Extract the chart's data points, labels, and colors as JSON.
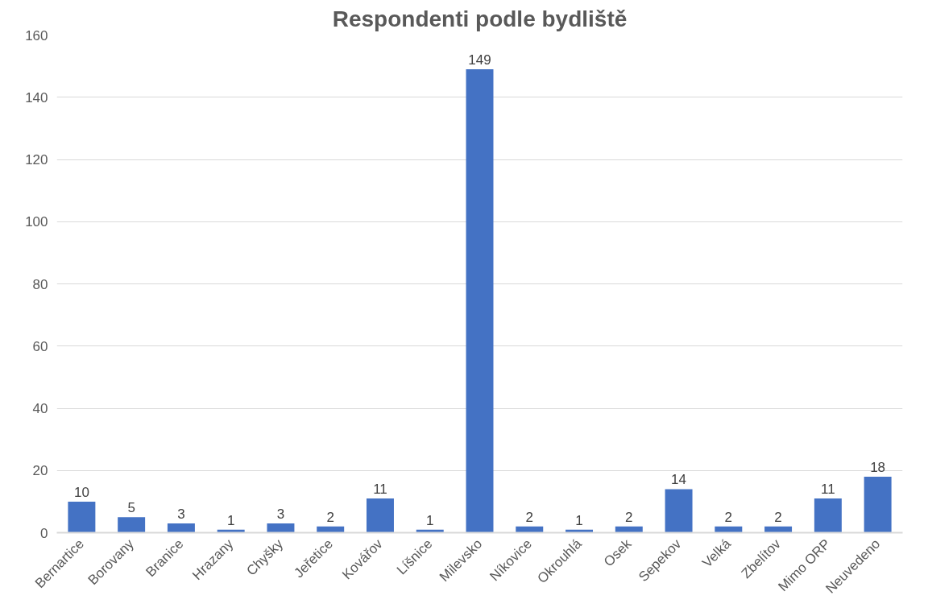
{
  "chart_data": {
    "type": "bar",
    "title": "Respondenti podle bydliště",
    "categories": [
      "Bernartice",
      "Borovany",
      "Branice",
      "Hrazany",
      "Chyšky",
      "Jeřetice",
      "Kovářov",
      "Líšnice",
      "Milevsko",
      "Níkovice",
      "Okrouhlá",
      "Osek",
      "Sepekov",
      "Velká",
      "Zbelítov",
      "Mimo ORP",
      "Neuvedeno"
    ],
    "values": [
      10,
      5,
      3,
      1,
      3,
      2,
      11,
      1,
      149,
      2,
      1,
      2,
      14,
      2,
      2,
      11,
      18
    ],
    "color": "#4472c4",
    "ylim": [
      0,
      160
    ],
    "yticks": [
      0,
      20,
      40,
      60,
      80,
      100,
      120,
      140,
      160
    ],
    "grid": "y",
    "data_labels": true
  }
}
